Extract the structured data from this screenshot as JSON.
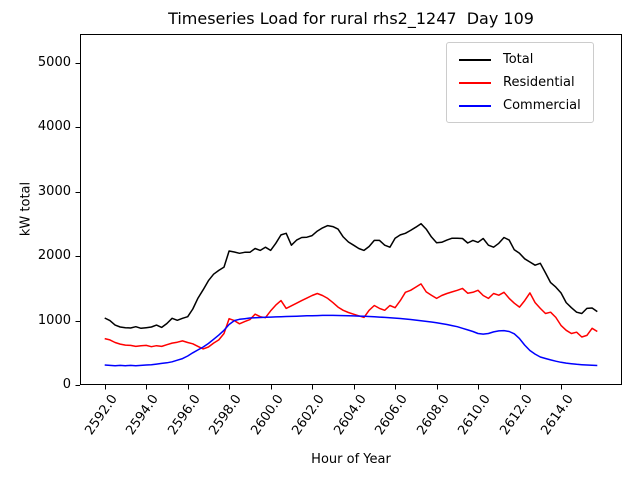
{
  "window": {
    "background": "#ffffff"
  },
  "chart_data": {
    "type": "line",
    "title": "Timeseries Load for rural rhs2_1247  Day 109",
    "xlabel": "Hour of Year",
    "ylabel": "kW total",
    "xlim": [
      2590.81,
      2616.94
    ],
    "ylim": [
      0,
      5450
    ],
    "grid": false,
    "legend_position": "upper right",
    "x_ticks": [
      2592,
      2594,
      2596,
      2598,
      2600,
      2602,
      2604,
      2606,
      2608,
      2610,
      2612,
      2614
    ],
    "x_tick_labels": [
      "2592.0",
      "2594.0",
      "2596.0",
      "2598.0",
      "2600.0",
      "2602.0",
      "2604.0",
      "2606.0",
      "2608.0",
      "2610.0",
      "2612.0",
      "2614.0"
    ],
    "x_tick_rotation_deg": 55,
    "y_ticks": [
      0,
      1000,
      2000,
      3000,
      4000,
      5000
    ],
    "y_tick_labels": [
      "0",
      "1000",
      "2000",
      "3000",
      "4000",
      "5000"
    ],
    "series": [
      {
        "name": "Total",
        "color": "#000000",
        "points": [
          [
            2592.0,
            1040
          ],
          [
            2592.25,
            1000
          ],
          [
            2592.5,
            930
          ],
          [
            2592.75,
            900
          ],
          [
            2593.0,
            890
          ],
          [
            2593.25,
            885
          ],
          [
            2593.5,
            905
          ],
          [
            2593.75,
            880
          ],
          [
            2594.0,
            890
          ],
          [
            2594.25,
            900
          ],
          [
            2594.5,
            930
          ],
          [
            2594.75,
            895
          ],
          [
            2595.0,
            955
          ],
          [
            2595.25,
            1035
          ],
          [
            2595.5,
            1005
          ],
          [
            2595.75,
            1035
          ],
          [
            2596.0,
            1060
          ],
          [
            2596.25,
            1180
          ],
          [
            2596.5,
            1350
          ],
          [
            2596.75,
            1480
          ],
          [
            2597.0,
            1620
          ],
          [
            2597.25,
            1720
          ],
          [
            2597.5,
            1780
          ],
          [
            2597.75,
            1830
          ],
          [
            2598.0,
            2080
          ],
          [
            2598.25,
            2065
          ],
          [
            2598.5,
            2045
          ],
          [
            2598.75,
            2060
          ],
          [
            2599.0,
            2060
          ],
          [
            2599.25,
            2120
          ],
          [
            2599.5,
            2090
          ],
          [
            2599.75,
            2140
          ],
          [
            2600.0,
            2090
          ],
          [
            2600.25,
            2200
          ],
          [
            2600.5,
            2330
          ],
          [
            2600.75,
            2355
          ],
          [
            2601.0,
            2170
          ],
          [
            2601.25,
            2250
          ],
          [
            2601.5,
            2290
          ],
          [
            2601.75,
            2295
          ],
          [
            2602.0,
            2320
          ],
          [
            2602.25,
            2390
          ],
          [
            2602.5,
            2440
          ],
          [
            2602.75,
            2475
          ],
          [
            2603.0,
            2460
          ],
          [
            2603.25,
            2420
          ],
          [
            2603.5,
            2300
          ],
          [
            2603.75,
            2220
          ],
          [
            2604.0,
            2170
          ],
          [
            2604.25,
            2120
          ],
          [
            2604.5,
            2090
          ],
          [
            2604.75,
            2150
          ],
          [
            2605.0,
            2245
          ],
          [
            2605.25,
            2245
          ],
          [
            2605.5,
            2170
          ],
          [
            2605.75,
            2140
          ],
          [
            2606.0,
            2280
          ],
          [
            2606.25,
            2330
          ],
          [
            2606.5,
            2355
          ],
          [
            2606.75,
            2400
          ],
          [
            2607.0,
            2450
          ],
          [
            2607.25,
            2505
          ],
          [
            2607.5,
            2420
          ],
          [
            2607.75,
            2300
          ],
          [
            2608.0,
            2210
          ],
          [
            2608.25,
            2215
          ],
          [
            2608.5,
            2250
          ],
          [
            2608.75,
            2280
          ],
          [
            2609.0,
            2280
          ],
          [
            2609.25,
            2275
          ],
          [
            2609.5,
            2205
          ],
          [
            2609.75,
            2245
          ],
          [
            2610.0,
            2215
          ],
          [
            2610.25,
            2275
          ],
          [
            2610.5,
            2170
          ],
          [
            2610.75,
            2140
          ],
          [
            2611.0,
            2200
          ],
          [
            2611.25,
            2290
          ],
          [
            2611.5,
            2250
          ],
          [
            2611.75,
            2100
          ],
          [
            2612.0,
            2045
          ],
          [
            2612.25,
            1960
          ],
          [
            2612.5,
            1910
          ],
          [
            2612.75,
            1860
          ],
          [
            2613.0,
            1890
          ],
          [
            2613.25,
            1740
          ],
          [
            2613.5,
            1590
          ],
          [
            2613.75,
            1520
          ],
          [
            2614.0,
            1430
          ],
          [
            2614.25,
            1280
          ],
          [
            2614.5,
            1200
          ],
          [
            2614.75,
            1130
          ],
          [
            2615.0,
            1110
          ],
          [
            2615.25,
            1190
          ],
          [
            2615.5,
            1195
          ],
          [
            2615.75,
            1140
          ]
        ]
      },
      {
        "name": "Residential",
        "color": "#ff0000",
        "points": [
          [
            2592.0,
            720
          ],
          [
            2592.25,
            700
          ],
          [
            2592.5,
            660
          ],
          [
            2592.75,
            635
          ],
          [
            2593.0,
            620
          ],
          [
            2593.25,
            615
          ],
          [
            2593.5,
            600
          ],
          [
            2593.75,
            610
          ],
          [
            2594.0,
            615
          ],
          [
            2594.25,
            595
          ],
          [
            2594.5,
            610
          ],
          [
            2594.75,
            600
          ],
          [
            2595.0,
            625
          ],
          [
            2595.25,
            650
          ],
          [
            2595.5,
            665
          ],
          [
            2595.75,
            685
          ],
          [
            2596.0,
            660
          ],
          [
            2596.25,
            640
          ],
          [
            2596.5,
            600
          ],
          [
            2596.75,
            560
          ],
          [
            2597.0,
            590
          ],
          [
            2597.25,
            650
          ],
          [
            2597.5,
            700
          ],
          [
            2597.75,
            800
          ],
          [
            2598.0,
            1030
          ],
          [
            2598.25,
            1000
          ],
          [
            2598.5,
            950
          ],
          [
            2598.75,
            985
          ],
          [
            2599.0,
            1015
          ],
          [
            2599.25,
            1100
          ],
          [
            2599.5,
            1060
          ],
          [
            2599.75,
            1045
          ],
          [
            2600.0,
            1150
          ],
          [
            2600.25,
            1240
          ],
          [
            2600.5,
            1310
          ],
          [
            2600.75,
            1190
          ],
          [
            2601.0,
            1230
          ],
          [
            2601.25,
            1270
          ],
          [
            2601.5,
            1310
          ],
          [
            2601.75,
            1350
          ],
          [
            2602.0,
            1390
          ],
          [
            2602.25,
            1420
          ],
          [
            2602.5,
            1390
          ],
          [
            2602.75,
            1345
          ],
          [
            2603.0,
            1280
          ],
          [
            2603.25,
            1210
          ],
          [
            2603.5,
            1160
          ],
          [
            2603.75,
            1125
          ],
          [
            2604.0,
            1100
          ],
          [
            2604.25,
            1075
          ],
          [
            2604.5,
            1050
          ],
          [
            2604.75,
            1160
          ],
          [
            2605.0,
            1235
          ],
          [
            2605.25,
            1190
          ],
          [
            2605.5,
            1160
          ],
          [
            2605.75,
            1235
          ],
          [
            2606.0,
            1200
          ],
          [
            2606.25,
            1310
          ],
          [
            2606.5,
            1440
          ],
          [
            2606.75,
            1470
          ],
          [
            2607.0,
            1520
          ],
          [
            2607.25,
            1570
          ],
          [
            2607.5,
            1445
          ],
          [
            2607.75,
            1395
          ],
          [
            2608.0,
            1345
          ],
          [
            2608.25,
            1390
          ],
          [
            2608.5,
            1420
          ],
          [
            2608.75,
            1445
          ],
          [
            2609.0,
            1470
          ],
          [
            2609.25,
            1500
          ],
          [
            2609.5,
            1425
          ],
          [
            2609.75,
            1440
          ],
          [
            2610.0,
            1470
          ],
          [
            2610.25,
            1390
          ],
          [
            2610.5,
            1345
          ],
          [
            2610.75,
            1420
          ],
          [
            2611.0,
            1395
          ],
          [
            2611.25,
            1440
          ],
          [
            2611.5,
            1345
          ],
          [
            2611.75,
            1270
          ],
          [
            2612.0,
            1210
          ],
          [
            2612.25,
            1310
          ],
          [
            2612.5,
            1430
          ],
          [
            2612.75,
            1280
          ],
          [
            2613.0,
            1190
          ],
          [
            2613.25,
            1110
          ],
          [
            2613.5,
            1130
          ],
          [
            2613.75,
            1050
          ],
          [
            2614.0,
            925
          ],
          [
            2614.25,
            850
          ],
          [
            2614.5,
            800
          ],
          [
            2614.75,
            820
          ],
          [
            2615.0,
            745
          ],
          [
            2615.25,
            770
          ],
          [
            2615.5,
            880
          ],
          [
            2615.75,
            830
          ]
        ]
      },
      {
        "name": "Commercial",
        "color": "#0000ff",
        "points": [
          [
            2592.0,
            310
          ],
          [
            2592.25,
            305
          ],
          [
            2592.5,
            300
          ],
          [
            2592.75,
            305
          ],
          [
            2593.0,
            300
          ],
          [
            2593.25,
            305
          ],
          [
            2593.5,
            300
          ],
          [
            2593.75,
            305
          ],
          [
            2594.0,
            310
          ],
          [
            2594.25,
            315
          ],
          [
            2594.5,
            325
          ],
          [
            2594.75,
            335
          ],
          [
            2595.0,
            345
          ],
          [
            2595.25,
            360
          ],
          [
            2595.5,
            385
          ],
          [
            2595.75,
            410
          ],
          [
            2596.0,
            450
          ],
          [
            2596.25,
            500
          ],
          [
            2596.5,
            545
          ],
          [
            2596.75,
            590
          ],
          [
            2597.0,
            645
          ],
          [
            2597.25,
            710
          ],
          [
            2597.5,
            775
          ],
          [
            2597.75,
            850
          ],
          [
            2598.0,
            940
          ],
          [
            2598.25,
            1000
          ],
          [
            2598.5,
            1020
          ],
          [
            2598.75,
            1030
          ],
          [
            2599.0,
            1040
          ],
          [
            2599.25,
            1044
          ],
          [
            2599.5,
            1048
          ],
          [
            2599.75,
            1052
          ],
          [
            2600.0,
            1055
          ],
          [
            2600.25,
            1058
          ],
          [
            2600.5,
            1060
          ],
          [
            2600.75,
            1063
          ],
          [
            2601.0,
            1065
          ],
          [
            2601.25,
            1068
          ],
          [
            2601.5,
            1072
          ],
          [
            2601.75,
            1074
          ],
          [
            2602.0,
            1075
          ],
          [
            2602.25,
            1078
          ],
          [
            2602.5,
            1080
          ],
          [
            2602.75,
            1080
          ],
          [
            2603.0,
            1080
          ],
          [
            2603.25,
            1079
          ],
          [
            2603.5,
            1078
          ],
          [
            2603.75,
            1075
          ],
          [
            2604.0,
            1073
          ],
          [
            2604.25,
            1070
          ],
          [
            2604.5,
            1068
          ],
          [
            2604.75,
            1064
          ],
          [
            2605.0,
            1060
          ],
          [
            2605.25,
            1055
          ],
          [
            2605.5,
            1050
          ],
          [
            2605.75,
            1044
          ],
          [
            2606.0,
            1038
          ],
          [
            2606.25,
            1032
          ],
          [
            2606.5,
            1025
          ],
          [
            2606.75,
            1017
          ],
          [
            2607.0,
            1008
          ],
          [
            2607.25,
            998
          ],
          [
            2607.5,
            988
          ],
          [
            2607.75,
            978
          ],
          [
            2608.0,
            968
          ],
          [
            2608.25,
            954
          ],
          [
            2608.5,
            940
          ],
          [
            2608.75,
            922
          ],
          [
            2609.0,
            905
          ],
          [
            2609.25,
            880
          ],
          [
            2609.5,
            855
          ],
          [
            2609.75,
            830
          ],
          [
            2610.0,
            800
          ],
          [
            2610.25,
            790
          ],
          [
            2610.5,
            800
          ],
          [
            2610.75,
            825
          ],
          [
            2611.0,
            840
          ],
          [
            2611.25,
            845
          ],
          [
            2611.5,
            830
          ],
          [
            2611.75,
            795
          ],
          [
            2612.0,
            720
          ],
          [
            2612.25,
            620
          ],
          [
            2612.5,
            535
          ],
          [
            2612.75,
            480
          ],
          [
            2613.0,
            435
          ],
          [
            2613.25,
            412
          ],
          [
            2613.5,
            390
          ],
          [
            2613.75,
            370
          ],
          [
            2614.0,
            352
          ],
          [
            2614.25,
            340
          ],
          [
            2614.5,
            330
          ],
          [
            2614.75,
            322
          ],
          [
            2615.0,
            315
          ],
          [
            2615.25,
            310
          ],
          [
            2615.5,
            306
          ],
          [
            2615.75,
            303
          ]
        ]
      }
    ]
  }
}
